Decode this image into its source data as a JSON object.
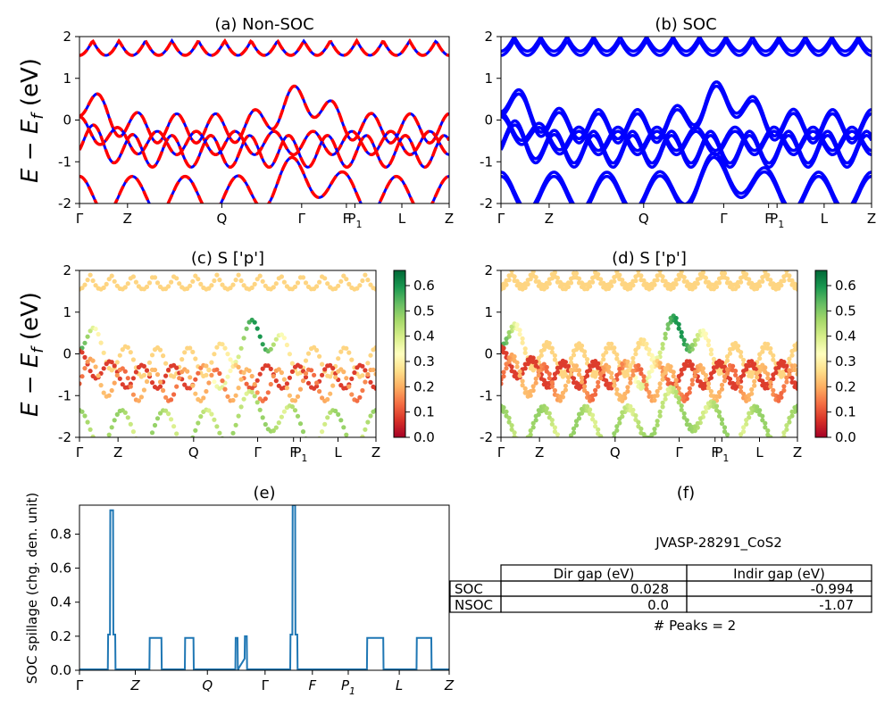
{
  "figure": {
    "ylabel_energy": "E − E_f (eV)",
    "kpath_labels": [
      "Γ",
      "Z",
      "Q",
      "Γ",
      "F",
      "P₁",
      "L",
      "Z"
    ]
  },
  "colors": {
    "soc": "#0000ff",
    "nonsoc": "#ff0000",
    "spillage": "#1f77b4",
    "cmap": "RdYlGn"
  },
  "panels": {
    "a": {
      "title": "(a) Non-SOC"
    },
    "b": {
      "title": "(b) SOC"
    },
    "c": {
      "title": "(c)  S ['p']",
      "colorbar_ticks": [
        "0.0",
        "0.1",
        "0.2",
        "0.3",
        "0.4",
        "0.5",
        "0.6"
      ]
    },
    "d": {
      "title": "(d) S ['p']",
      "colorbar_ticks": [
        "0.0",
        "0.1",
        "0.2",
        "0.3",
        "0.4",
        "0.5",
        "0.6"
      ]
    },
    "e": {
      "title": "(e)",
      "ylabel": "SOC spillage (chg. den. unit)"
    },
    "f": {
      "title": "(f)",
      "material": "JVASP-28291_CoS2",
      "columns": [
        "",
        "Dir gap (eV)",
        "Indir gap (eV)"
      ],
      "rows": [
        [
          "SOC",
          "0.028",
          "-0.994"
        ],
        [
          "NSOC",
          "0.0",
          "-1.07"
        ]
      ],
      "peaks": "# Peaks = 2"
    }
  },
  "chart_data": [
    {
      "type": "line",
      "title": "(a) Non-SOC",
      "ylabel": "E − E_f (eV)",
      "ylim": [
        -2,
        2
      ],
      "yticks": [
        -2,
        -1,
        0,
        1,
        2
      ],
      "xticks": [
        "Γ",
        "Z",
        "Q",
        "Γ",
        "F",
        "P₁",
        "L",
        "Z"
      ],
      "series": [
        {
          "name": "Non-SOC (red dashed)",
          "bands_at_gamma_eV": [
            0.7,
            -0.5,
            -0.9,
            -1.3,
            -2.0
          ]
        },
        {
          "name": "SOC (blue)",
          "bands_at_gamma_eV": [
            0.7,
            -0.5,
            -0.9,
            -1.3,
            -2.0
          ]
        }
      ]
    },
    {
      "type": "line",
      "title": "(b) SOC",
      "ylim": [
        -2,
        2
      ],
      "yticks": [
        -2,
        -1,
        0,
        1,
        2
      ],
      "xticks": [
        "Γ",
        "Z",
        "Q",
        "Γ",
        "F",
        "P₁",
        "L",
        "Z"
      ],
      "series": [
        {
          "name": "SOC bands",
          "bands_at_gamma_eV": [
            0.7,
            0.6,
            -0.5,
            -0.6,
            -0.9,
            -1.0,
            -1.3,
            -1.4
          ]
        }
      ]
    },
    {
      "type": "scatter",
      "title": "(c)  S ['p']",
      "ylim": [
        -2,
        2
      ],
      "colorbar_range": [
        0.0,
        0.66
      ],
      "xticks": [
        "Γ",
        "Z",
        "Q",
        "Γ",
        "F",
        "P₁",
        "L",
        "Z"
      ]
    },
    {
      "type": "scatter",
      "title": "(d) S ['p']",
      "ylim": [
        -2,
        2
      ],
      "colorbar_range": [
        0.0,
        0.66
      ],
      "xticks": [
        "Γ",
        "Z",
        "Q",
        "Γ",
        "F",
        "P₁",
        "L",
        "Z"
      ]
    },
    {
      "type": "line",
      "title": "(e)",
      "ylabel": "SOC spillage (chg. den. unit)",
      "ylim": [
        0,
        0.97
      ],
      "yticks": [
        0.0,
        0.2,
        0.4,
        0.6,
        0.8
      ],
      "xticks": [
        "Γ",
        "Z",
        "Q",
        "Γ",
        "F",
        "P₁",
        "L",
        "Z"
      ],
      "series": [
        {
          "name": "spillage",
          "peaks": [
            {
              "x": 0.087,
              "width": 0.004,
              "height": 0.94,
              "shoulder": 0.21
            },
            {
              "x": 0.206,
              "width": 0.016,
              "height": 0.19
            },
            {
              "x": 0.297,
              "width": 0.012,
              "height": 0.19
            },
            {
              "x": 0.425,
              "width": 0.003,
              "height": 0.19
            },
            {
              "x": 0.45,
              "width": 0.003,
              "height": 0.2,
              "hump": 0.07
            },
            {
              "x": 0.58,
              "width": 0.004,
              "height": 0.97,
              "shoulder": 0.21
            },
            {
              "x": 0.8,
              "width": 0.022,
              "height": 0.19
            },
            {
              "x": 0.932,
              "width": 0.02,
              "height": 0.19
            }
          ]
        }
      ]
    }
  ]
}
